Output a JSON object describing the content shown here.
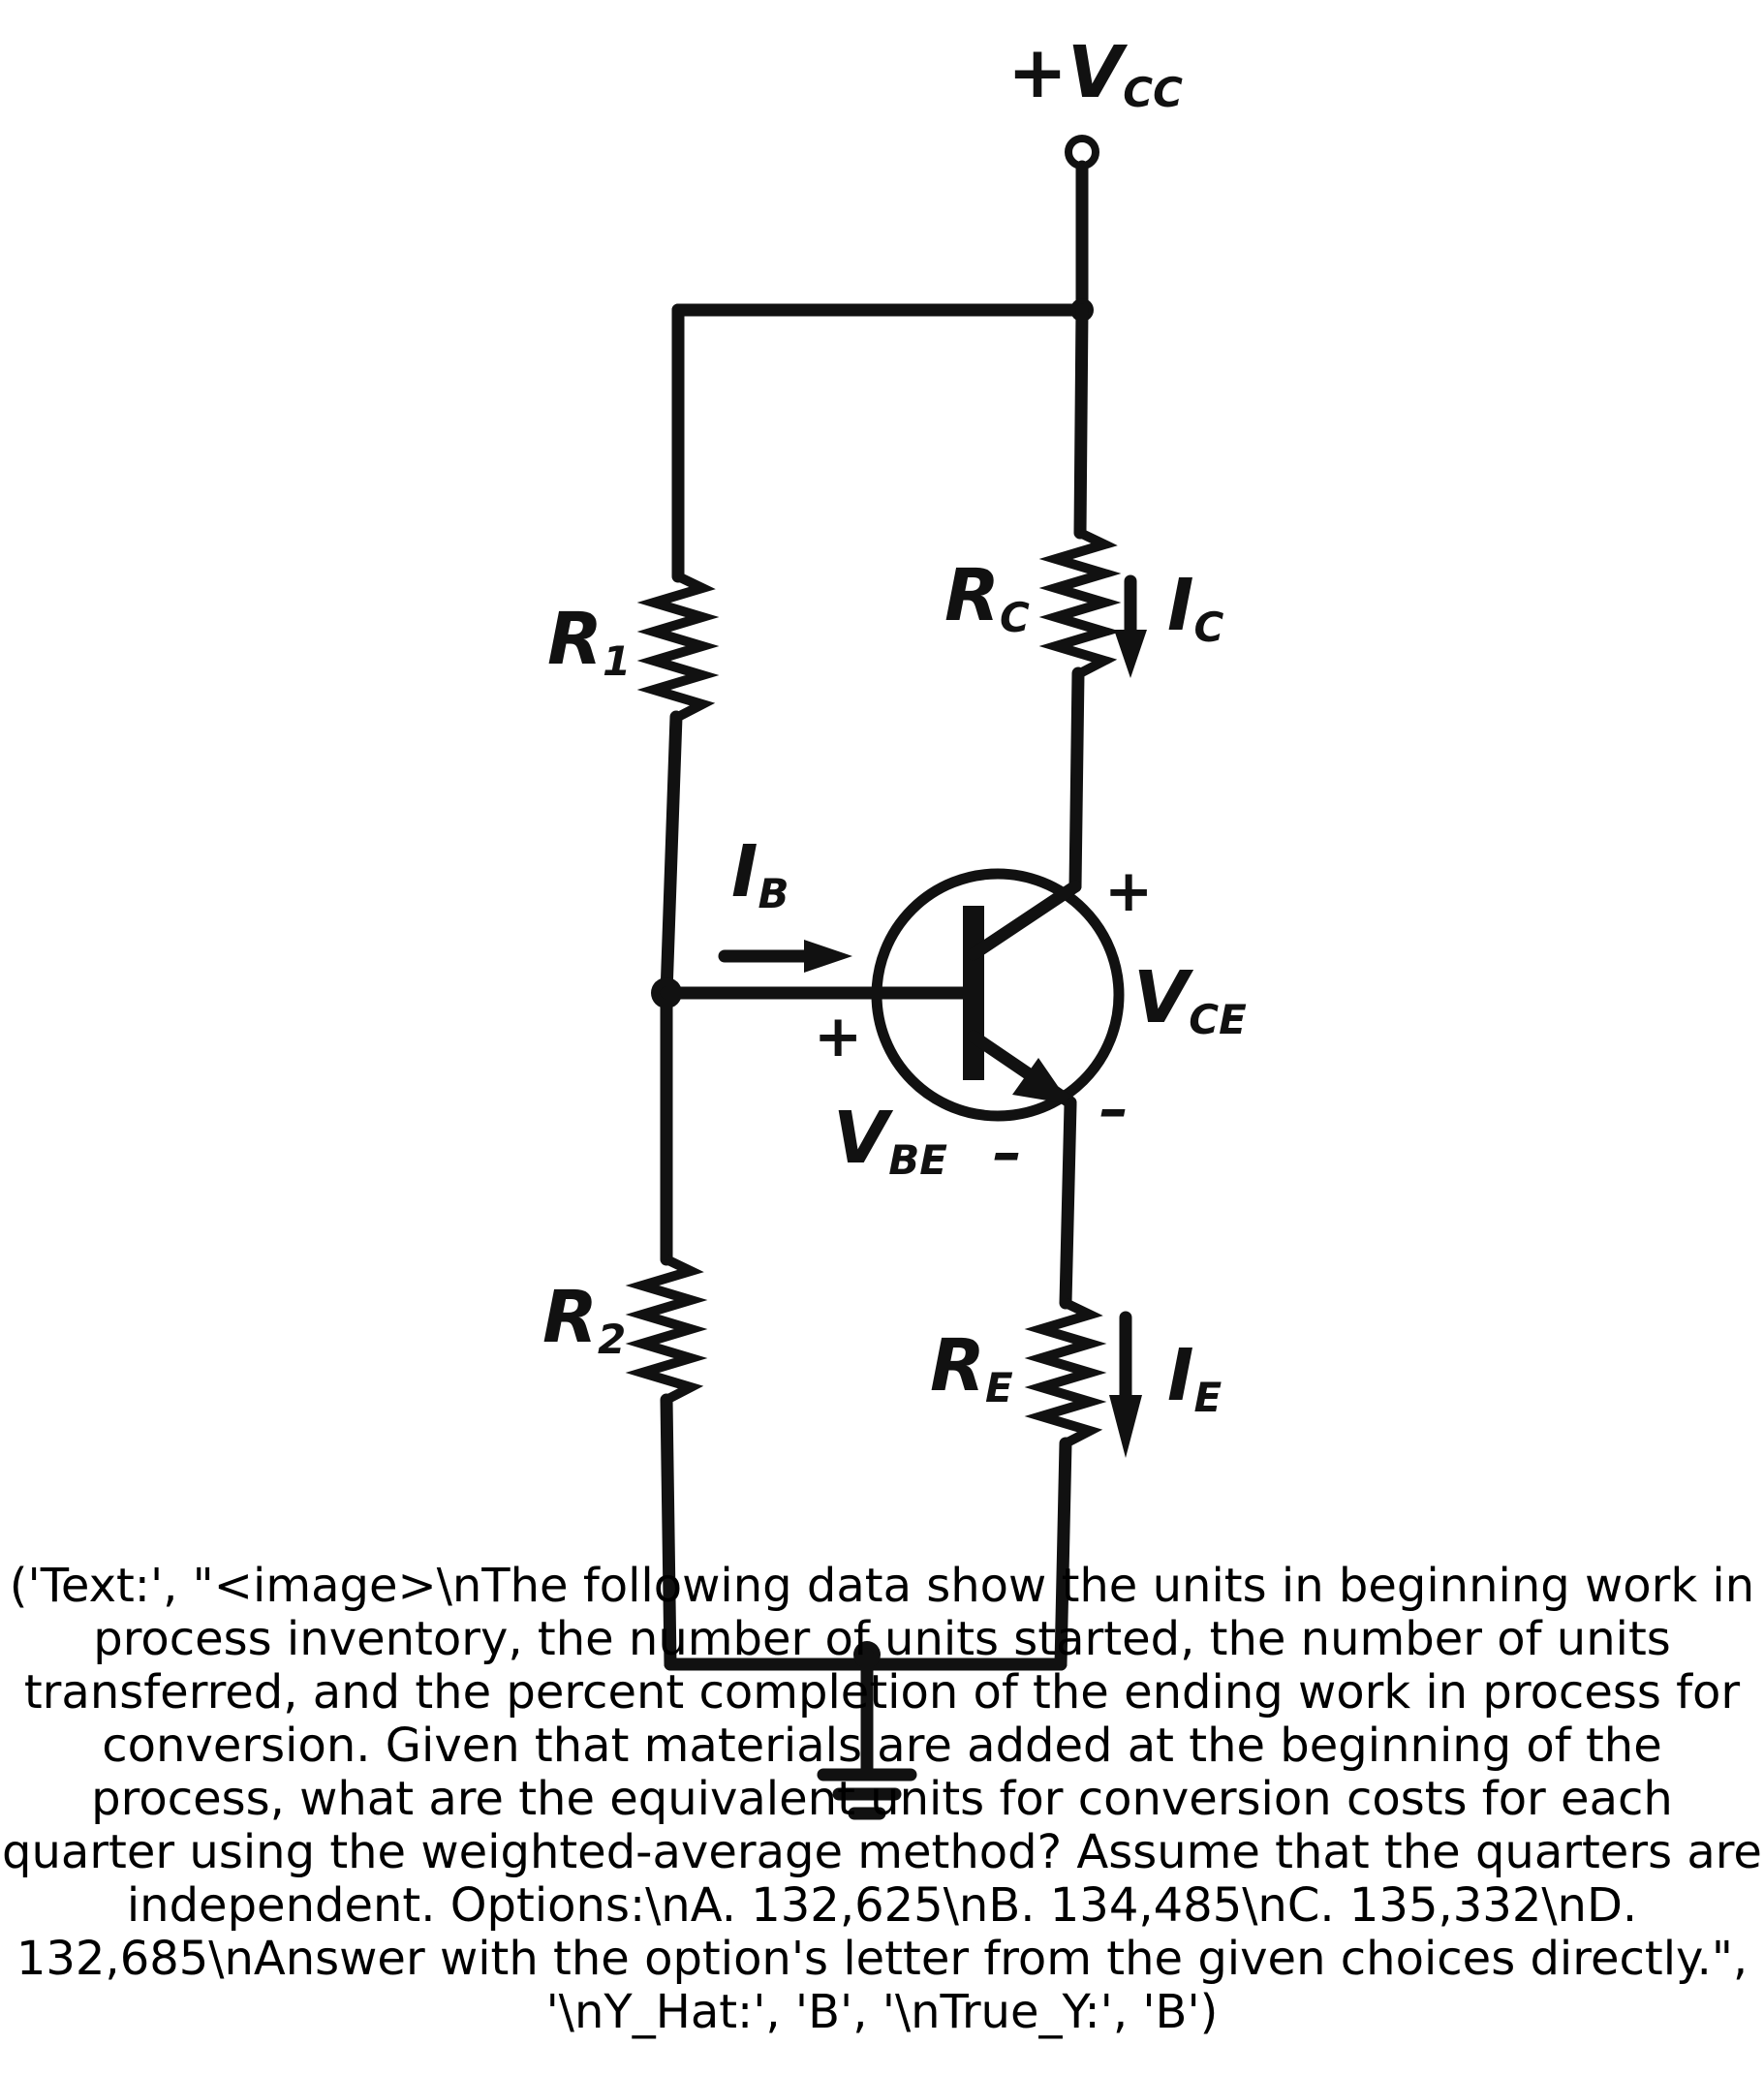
{
  "labels": {
    "vcc_sign": "+",
    "vcc_v": "V",
    "vcc_sub": "CC",
    "r1_r": "R",
    "r1_sub": "1",
    "r2_r": "R",
    "r2_sub": "2",
    "rc_r": "R",
    "rc_sub": "C",
    "re_r": "R",
    "re_sub": "E",
    "ic_i": "I",
    "ic_sub": "C",
    "ie_i": "I",
    "ie_sub": "E",
    "ib_i": "I",
    "ib_sub": "B",
    "vce_v": "V",
    "vce_sub": "CE",
    "vbe_v": "V",
    "vbe_sub": "BE",
    "plus": "+",
    "minus": "–"
  },
  "caption": "('Text:', \"<image>\\nThe following data show the units in beginning work in process inventory, the number of units started, the number of units transferred, and the percent completion of the ending work in process for conversion. Given that materials are added at the beginning of the process, what are the equivalent units for conversion costs for each quarter using the weighted-average method? Assume that the quarters are independent. Options:\\nA. 132,625\\nB. 134,485\\nC. 135,332\\nD. 132,685\\nAnswer with the option's letter from the given choices directly.\", '\\nY_Hat:', 'B', '\\nTrue_Y:', 'B')"
}
